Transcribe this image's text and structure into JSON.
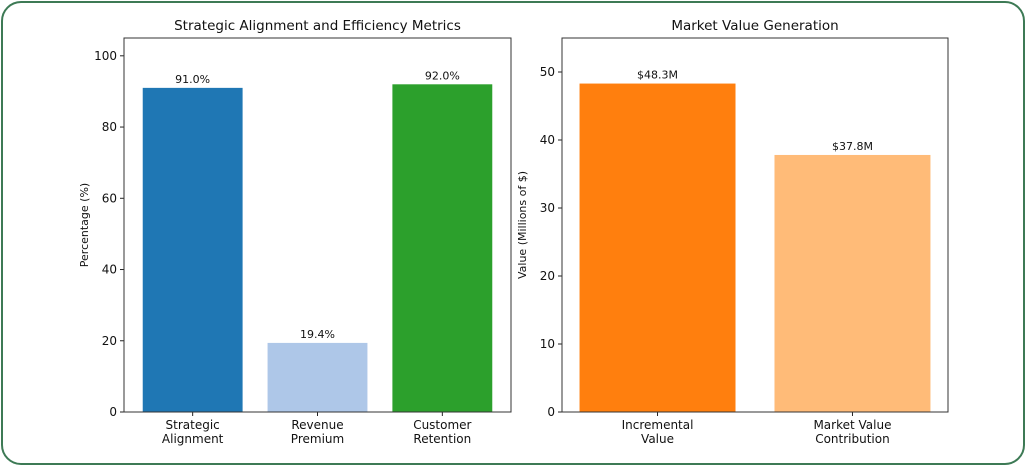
{
  "colors": {
    "frame": "#3d7a55"
  },
  "chart_data": [
    {
      "type": "bar",
      "title": "Strategic Alignment and Efficiency Metrics",
      "xlabel": "",
      "ylabel": "Percentage (%)",
      "categories": [
        "Strategic\nAlignment",
        "Revenue\nPremium",
        "Customer\nRetention"
      ],
      "values": [
        91.0,
        19.4,
        92.0
      ],
      "data_labels": [
        "91.0%",
        "19.4%",
        "92.0%"
      ],
      "colors": [
        "#1f77b4",
        "#aec7e8",
        "#2ca02c"
      ],
      "ylim": [
        0,
        105
      ],
      "yticks": [
        0,
        20,
        40,
        60,
        80,
        100
      ],
      "grid": false
    },
    {
      "type": "bar",
      "title": "Market Value Generation",
      "xlabel": "",
      "ylabel": "Value (Millions of $)",
      "categories": [
        "Incremental\nValue",
        "Market Value\nContribution"
      ],
      "values": [
        48.3,
        37.8
      ],
      "data_labels": [
        "$48.3M",
        "$37.8M"
      ],
      "colors": [
        "#ff7f0e",
        "#ffbb78"
      ],
      "ylim": [
        0,
        55
      ],
      "yticks": [
        0,
        10,
        20,
        30,
        40,
        50
      ],
      "grid": false
    }
  ]
}
